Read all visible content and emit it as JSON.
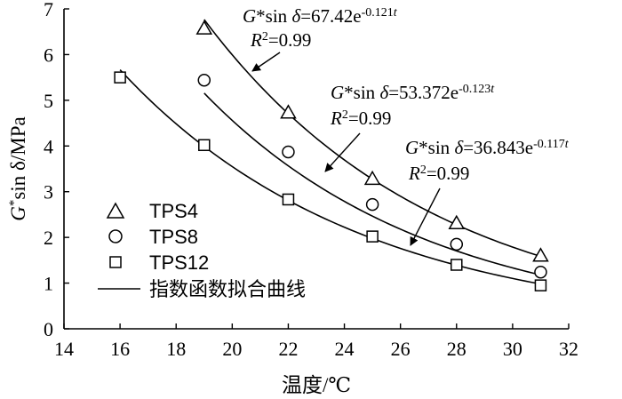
{
  "chart_data": {
    "type": "scatter",
    "xlabel": "温度/℃",
    "ylabel": "G*sin δ/MPa",
    "ylabel_parts": {
      "g": "G",
      "star": "*",
      "rest": "sin δ/MPa"
    },
    "xlim": [
      14,
      32
    ],
    "ylim": [
      0,
      7
    ],
    "xticks": [
      "14",
      "16",
      "18",
      "20",
      "22",
      "24",
      "26",
      "28",
      "30",
      "32"
    ],
    "yticks": [
      "0",
      "1",
      "2",
      "3",
      "4",
      "5",
      "6",
      "7"
    ],
    "legend_position": "bottom-left",
    "series": [
      {
        "name": "TPS4",
        "marker": "triangle",
        "points": [
          [
            19,
            6.57
          ],
          [
            22,
            4.73
          ],
          [
            25,
            3.28
          ],
          [
            28,
            2.31
          ],
          [
            31,
            1.6
          ]
        ],
        "fit": {
          "a": 67.42,
          "b": -0.121
        },
        "fit_label": {
          "g": "G",
          "lhs_rest": "*sin ",
          "delta": "δ",
          "eq": "=67.42e",
          "exp": "-0.121",
          "t": "t",
          "r": "R",
          "r_exp": "2",
          "r_val": "=0.99"
        }
      },
      {
        "name": "TPS8",
        "marker": "circle",
        "points": [
          [
            19,
            5.44
          ],
          [
            22,
            3.87
          ],
          [
            25,
            2.72
          ],
          [
            28,
            1.85
          ],
          [
            31,
            1.24
          ]
        ],
        "fit": {
          "a": 53.372,
          "b": -0.123
        },
        "fit_label": {
          "g": "G",
          "lhs_rest": "*sin ",
          "delta": "δ",
          "eq": "=53.372e",
          "exp": "-0.123",
          "t": "t",
          "r": "R",
          "r_exp": "2",
          "r_val": "=0.99"
        }
      },
      {
        "name": "TPS12",
        "marker": "square",
        "points": [
          [
            16,
            5.5
          ],
          [
            19,
            4.02
          ],
          [
            22,
            2.83
          ],
          [
            25,
            2.02
          ],
          [
            28,
            1.4
          ],
          [
            31,
            0.95
          ]
        ],
        "fit": {
          "a": 36.843,
          "b": -0.117
        },
        "fit_label": {
          "g": "G",
          "lhs_rest": "*sin ",
          "delta": "δ",
          "eq": "=36.843e",
          "exp": "-0.117",
          "t": "t",
          "r": "R",
          "r_exp": "2",
          "r_val": "=0.99"
        }
      }
    ],
    "fit_legend_label": "指数函数拟合曲线"
  }
}
